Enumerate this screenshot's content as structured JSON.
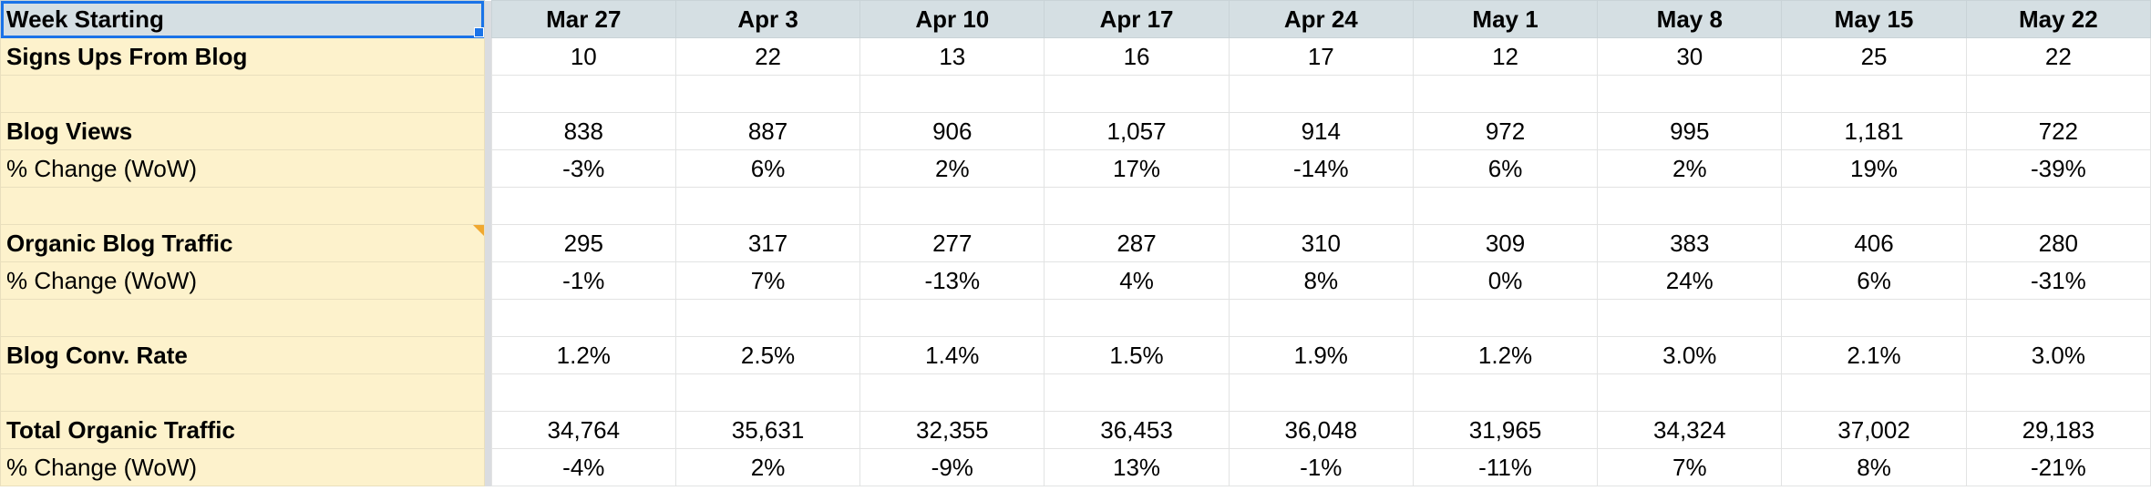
{
  "header": {
    "label": "Week Starting",
    "weeks": [
      "Mar 27",
      "Apr 3",
      "Apr 10",
      "Apr 17",
      "Apr 24",
      "May 1",
      "May 8",
      "May 15",
      "May 22"
    ]
  },
  "rows": [
    {
      "label": "Signs Ups From Blog",
      "bold": true,
      "values": [
        "10",
        "22",
        "13",
        "16",
        "17",
        "12",
        "30",
        "25",
        "22"
      ]
    },
    {
      "label": "",
      "bold": false,
      "values": [
        "",
        "",
        "",
        "",
        "",
        "",
        "",
        "",
        ""
      ]
    },
    {
      "label": "Blog Views",
      "bold": true,
      "values": [
        "838",
        "887",
        "906",
        "1,057",
        "914",
        "972",
        "995",
        "1,181",
        "722"
      ]
    },
    {
      "label": "% Change (WoW)",
      "bold": false,
      "values": [
        "-3%",
        "6%",
        "2%",
        "17%",
        "-14%",
        "6%",
        "2%",
        "19%",
        "-39%"
      ]
    },
    {
      "label": "",
      "bold": false,
      "values": [
        "",
        "",
        "",
        "",
        "",
        "",
        "",
        "",
        ""
      ]
    },
    {
      "label": "Organic Blog Traffic",
      "bold": true,
      "note": true,
      "values": [
        "295",
        "317",
        "277",
        "287",
        "310",
        "309",
        "383",
        "406",
        "280"
      ]
    },
    {
      "label": "% Change (WoW)",
      "bold": false,
      "values": [
        "-1%",
        "7%",
        "-13%",
        "4%",
        "8%",
        "0%",
        "24%",
        "6%",
        "-31%"
      ]
    },
    {
      "label": "",
      "bold": false,
      "values": [
        "",
        "",
        "",
        "",
        "",
        "",
        "",
        "",
        ""
      ]
    },
    {
      "label": "Blog Conv. Rate",
      "bold": true,
      "values": [
        "1.2%",
        "2.5%",
        "1.4%",
        "1.5%",
        "1.9%",
        "1.2%",
        "3.0%",
        "2.1%",
        "3.0%"
      ]
    },
    {
      "label": "",
      "bold": false,
      "values": [
        "",
        "",
        "",
        "",
        "",
        "",
        "",
        "",
        ""
      ]
    },
    {
      "label": "Total Organic Traffic",
      "bold": true,
      "values": [
        "34,764",
        "35,631",
        "32,355",
        "36,453",
        "36,048",
        "31,965",
        "34,324",
        "37,002",
        "29,183"
      ]
    },
    {
      "label": "% Change (WoW)",
      "bold": false,
      "values": [
        "-4%",
        "2%",
        "-9%",
        "13%",
        "-1%",
        "-11%",
        "7%",
        "8%",
        "-21%"
      ]
    }
  ],
  "colors": {
    "header_bg": "#d5dfe3",
    "label_bg": "#fdf2cc",
    "selection": "#1a73e8",
    "note_marker": "#f0a830"
  },
  "icons": {
    "note": "note-indicator-icon",
    "fill_handle": "fill-handle-icon"
  }
}
